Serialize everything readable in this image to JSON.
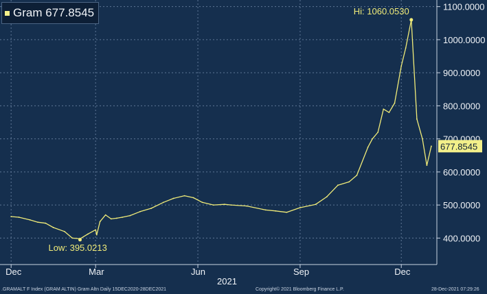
{
  "legend": {
    "label": "Gram 677.8545",
    "swatch_color": "#f3f08a"
  },
  "footer": {
    "left": ".GRAMALT F Index (GRAM ALTIN) Gram Altn  Daily 15DEC2020-28DEC2021",
    "center": "Copyright© 2021 Bloomberg Finance L.P.",
    "right": "28-Dec-2021 07:29:26"
  },
  "chart_data": {
    "type": "line",
    "title": "",
    "xlabel": "2021",
    "ylabel": "",
    "ylim": [
      320,
      1120
    ],
    "yticks": [
      "400.0000",
      "500.0000",
      "600.0000",
      "700.0000",
      "800.0000",
      "900.0000",
      "1000.0000",
      "1100.0000"
    ],
    "xticks": [
      "Dec",
      "Mar",
      "Jun",
      "Sep",
      "Dec"
    ],
    "last_value_label": "677.8545",
    "series": [
      {
        "color": "#f1ec79",
        "x": [
          "2020-12-15",
          "2020-12-22",
          "2021-01-01",
          "2021-01-08",
          "2021-01-15",
          "2021-01-22",
          "2021-02-01",
          "2021-02-08",
          "2021-02-15",
          "2021-02-22",
          "2021-03-01",
          "2021-03-02",
          "2021-03-05",
          "2021-03-10",
          "2021-03-15",
          "2021-03-20",
          "2021-03-25",
          "2021-04-01",
          "2021-04-10",
          "2021-04-20",
          "2021-05-01",
          "2021-05-10",
          "2021-05-20",
          "2021-05-28",
          "2021-06-05",
          "2021-06-15",
          "2021-06-25",
          "2021-07-01",
          "2021-07-15",
          "2021-08-01",
          "2021-08-10",
          "2021-08-20",
          "2021-09-01",
          "2021-09-15",
          "2021-09-25",
          "2021-10-05",
          "2021-10-15",
          "2021-10-22",
          "2021-11-01",
          "2021-11-05",
          "2021-11-10",
          "2021-11-15",
          "2021-11-20",
          "2021-11-25",
          "2021-12-01",
          "2021-12-05",
          "2021-12-10",
          "2021-12-15",
          "2021-12-20",
          "2021-12-24",
          "2021-12-28"
        ],
        "values": [
          465,
          463,
          455,
          448,
          445,
          432,
          420,
          400,
          398,
          412,
          425,
          410,
          450,
          470,
          458,
          460,
          463,
          468,
          480,
          490,
          508,
          520,
          528,
          522,
          508,
          500,
          502,
          500,
          497,
          485,
          482,
          478,
          492,
          502,
          525,
          560,
          570,
          590,
          675,
          700,
          720,
          790,
          780,
          808,
          920,
          975,
          1060,
          760,
          700,
          620,
          677.85
        ]
      }
    ],
    "annotations": [
      {
        "label": "Hi: 1060.0530",
        "x": "2021-12-10",
        "value": 1060.053
      },
      {
        "label": "Low: 395.0213",
        "x": "2021-02-15",
        "value": 395.0213
      }
    ]
  }
}
